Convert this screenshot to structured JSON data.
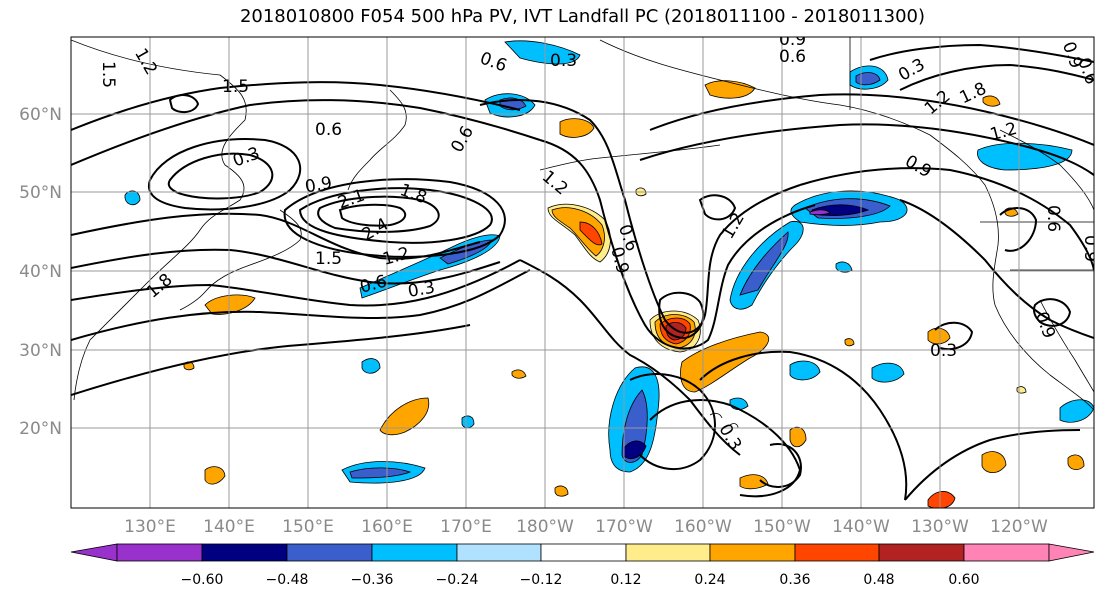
{
  "title": "2018010800 F054 500 hPa PV, IVT Landfall PC (2018011100 - 2018011300)",
  "lat_labels": [
    "60°N",
    "50°N",
    "40°N",
    "30°N",
    "20°N"
  ],
  "lon_labels": [
    "130°E",
    "140°E",
    "150°E",
    "160°E",
    "170°E",
    "180°W",
    "170°W",
    "160°W",
    "150°W",
    "140°W",
    "130°W",
    "120°W"
  ],
  "contour_labels": [
    "1.5",
    "1.2",
    "1.5",
    "0.6",
    "0.3",
    "0.9",
    "0.6",
    "0.3",
    "0.9",
    "0.6",
    "1.2",
    "1.8",
    "1.2",
    "0.9",
    "0.6",
    "0.3",
    "0.6",
    "0.9",
    "2.1",
    "1.8",
    "2.4",
    "1.5",
    "1.2",
    "0.6",
    "0.3",
    "1.8",
    "0.9",
    "1.2",
    "0.3",
    "0.9",
    "0.6",
    "1.2",
    "0.6",
    "0.3",
    "0.9"
  ],
  "colorbar": {
    "ticks": [
      "−0.60",
      "−0.48",
      "−0.36",
      "−0.24",
      "−0.12",
      "0.12",
      "0.24",
      "0.36",
      "0.48",
      "0.60"
    ],
    "colors": [
      "#9932cc",
      "#000080",
      "#3a5fcd",
      "#00bfff",
      "#b0e2ff",
      "#ffffff",
      "#ffec8b",
      "#ffa500",
      "#ff4500",
      "#b22222",
      "#ff83b4",
      "#ff83b4"
    ]
  },
  "fill_colors": {
    "neg1": "#00bfff",
    "neg2": "#3a5fcd",
    "neg3": "#000080",
    "neg4": "#9932cc",
    "negl": "#b0e2ff",
    "pos1": "#ffa500",
    "pos2": "#ff4500",
    "pos3": "#b22222",
    "posl": "#ffec8b"
  }
}
